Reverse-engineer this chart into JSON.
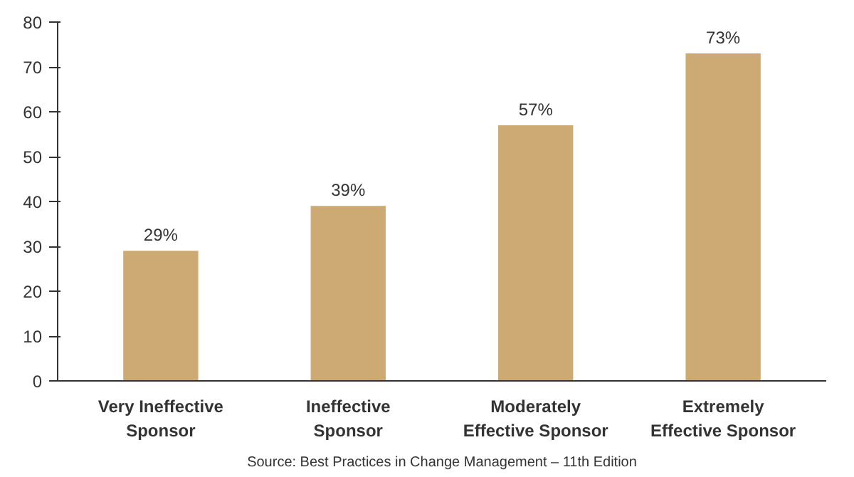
{
  "chart_data": {
    "type": "bar",
    "categories": [
      "Very Ineffective\nSponsor",
      "Ineffective\nSponsor",
      "Moderately\nEffective Sponsor",
      "Extremely\nEffective Sponsor"
    ],
    "values": [
      29,
      39,
      57,
      73
    ],
    "value_labels": [
      "29%",
      "39%",
      "57%",
      "73%"
    ],
    "color": "#cdaa73",
    "ylim": [
      0,
      80
    ],
    "yticks": [
      0,
      10,
      20,
      30,
      40,
      50,
      60,
      70,
      80
    ],
    "grid": false,
    "annotations": [
      "Source: Best Practices in Change Management – 11th Edition"
    ]
  }
}
